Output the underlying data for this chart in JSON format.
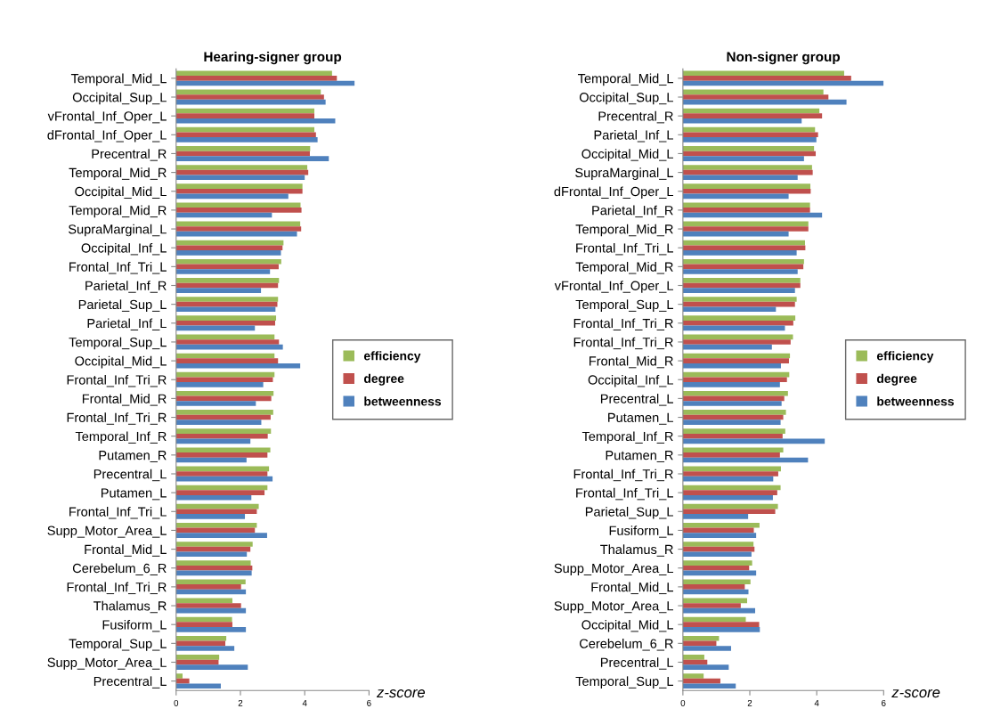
{
  "chart_data": [
    {
      "type": "bar",
      "orientation": "horizontal",
      "title": "Hearing-signer group",
      "xlabel": "z-score",
      "legend": "right",
      "xlim": [
        0,
        6
      ],
      "xticks": [
        0,
        2,
        4,
        6
      ],
      "categories": [
        "Temporal_Mid_L",
        "Occipital_Sup_L",
        "vFrontal_Inf_Oper_L",
        "dFrontal_Inf_Oper_L",
        "Precentral_R",
        "Temporal_Mid_R",
        "Occipital_Mid_L",
        "Temporal_Mid_R",
        "SupraMarginal_L",
        "Occipital_Inf_L",
        "Frontal_Inf_Tri_L",
        "Parietal_Inf_R",
        "Parietal_Sup_L",
        "Parietal_Inf_L",
        "Temporal_Sup_L",
        "Occipital_Mid_L",
        "Frontal_Inf_Tri_R",
        "Frontal_Mid_R",
        "Frontal_Inf_Tri_R",
        "Temporal_Inf_R",
        "Putamen_R",
        "Precentral_L",
        "Putamen_L",
        "Frontal_Inf_Tri_L",
        "Supp_Motor_Area_L",
        "Frontal_Mid_L",
        "Cerebelum_6_R",
        "Frontal_Inf_Tri_R",
        "Thalamus_R",
        "Fusiform_L",
        "Temporal_Sup_L",
        "Supp_Motor_Area_L",
        "Precentral_L"
      ],
      "series": [
        {
          "name": "efficiency",
          "color": "#9bbb59",
          "values": [
            4.85,
            4.5,
            4.3,
            4.3,
            4.17,
            4.08,
            3.93,
            3.87,
            3.86,
            3.34,
            3.27,
            3.2,
            3.17,
            3.11,
            3.06,
            3.06,
            3.06,
            3.03,
            3.02,
            2.95,
            2.93,
            2.89,
            2.84,
            2.57,
            2.51,
            2.38,
            2.32,
            2.16,
            1.75,
            1.74,
            1.56,
            1.34,
            0.2
          ]
        },
        {
          "name": "degree",
          "color": "#c0504d",
          "values": [
            5.0,
            4.6,
            4.3,
            4.35,
            4.16,
            4.11,
            3.93,
            3.9,
            3.89,
            3.31,
            3.19,
            3.17,
            3.15,
            3.08,
            3.2,
            3.17,
            3.01,
            2.96,
            2.94,
            2.85,
            2.84,
            2.84,
            2.75,
            2.51,
            2.45,
            2.31,
            2.37,
            2.02,
            2.02,
            1.75,
            1.53,
            1.32,
            0.41
          ]
        },
        {
          "name": "betweenness",
          "color": "#4f81bd",
          "values": [
            5.55,
            4.65,
            4.95,
            4.4,
            4.75,
            4.0,
            3.49,
            2.98,
            3.76,
            3.26,
            2.92,
            2.64,
            3.09,
            2.45,
            3.32,
            3.86,
            2.71,
            2.48,
            2.65,
            2.31,
            2.19,
            3.0,
            2.34,
            2.14,
            2.83,
            2.2,
            2.35,
            2.17,
            2.17,
            2.17,
            1.81,
            2.23,
            1.39
          ]
        }
      ]
    },
    {
      "type": "bar",
      "orientation": "horizontal",
      "title": "Non-signer group",
      "xlabel": "z-score",
      "legend": "right",
      "xlim": [
        0,
        6
      ],
      "xticks": [
        0,
        2,
        4,
        6
      ],
      "categories": [
        "Temporal_Mid_L",
        "Occipital_Sup_L",
        "Precentral_R",
        "Parietal_Inf_L",
        "Occipital_Mid_L",
        "SupraMarginal_L",
        "dFrontal_Inf_Oper_L",
        "Parietal_Inf_R",
        "Temporal_Mid_R",
        "Frontal_Inf_Tri_L",
        "Temporal_Mid_R",
        "vFrontal_Inf_Oper_L",
        "Temporal_Sup_L",
        "Frontal_Inf_Tri_R",
        "Frontal_Inf_Tri_R",
        "Frontal_Mid_R",
        "Occipital_Inf_L",
        "Precentral_L",
        "Putamen_L",
        "Temporal_Inf_R",
        "Putamen_R",
        "Frontal_Inf_Tri_R",
        "Frontal_Inf_Tri_L",
        "Parietal_Sup_L",
        "Fusiform_L",
        "Thalamus_R",
        "Supp_Motor_Area_L",
        "Frontal_Mid_L",
        "Supp_Motor_Area_L",
        "Occipital_Mid_L",
        "Cerebelum_6_R",
        "Precentral_L",
        "Temporal_Sup_L"
      ],
      "series": [
        {
          "name": "efficiency",
          "color": "#9bbb59",
          "values": [
            4.82,
            4.2,
            4.08,
            3.95,
            3.92,
            3.86,
            3.81,
            3.8,
            3.75,
            3.65,
            3.62,
            3.51,
            3.4,
            3.36,
            3.29,
            3.2,
            3.18,
            3.14,
            3.08,
            3.06,
            3.0,
            2.93,
            2.92,
            2.84,
            2.29,
            2.11,
            2.07,
            2.02,
            1.92,
            1.88,
            1.08,
            0.64,
            0.62
          ]
        },
        {
          "name": "degree",
          "color": "#c0504d",
          "values": [
            5.03,
            4.35,
            4.16,
            4.04,
            3.97,
            3.88,
            3.82,
            3.8,
            3.75,
            3.66,
            3.6,
            3.51,
            3.35,
            3.3,
            3.22,
            3.17,
            3.11,
            3.03,
            3.0,
            2.98,
            2.9,
            2.85,
            2.82,
            2.76,
            2.12,
            2.14,
            1.98,
            1.85,
            1.73,
            2.28,
            1.0,
            0.73,
            1.12
          ]
        },
        {
          "name": "betweenness",
          "color": "#4f81bd",
          "values": [
            6.0,
            4.89,
            3.55,
            3.99,
            3.62,
            3.43,
            3.16,
            4.16,
            3.16,
            3.4,
            3.43,
            3.35,
            2.78,
            3.05,
            2.66,
            2.93,
            2.9,
            2.95,
            2.92,
            4.24,
            3.74,
            2.7,
            2.69,
            1.95,
            2.19,
            2.05,
            2.19,
            1.96,
            2.16,
            2.3,
            1.44,
            1.37,
            1.58
          ]
        }
      ]
    }
  ]
}
